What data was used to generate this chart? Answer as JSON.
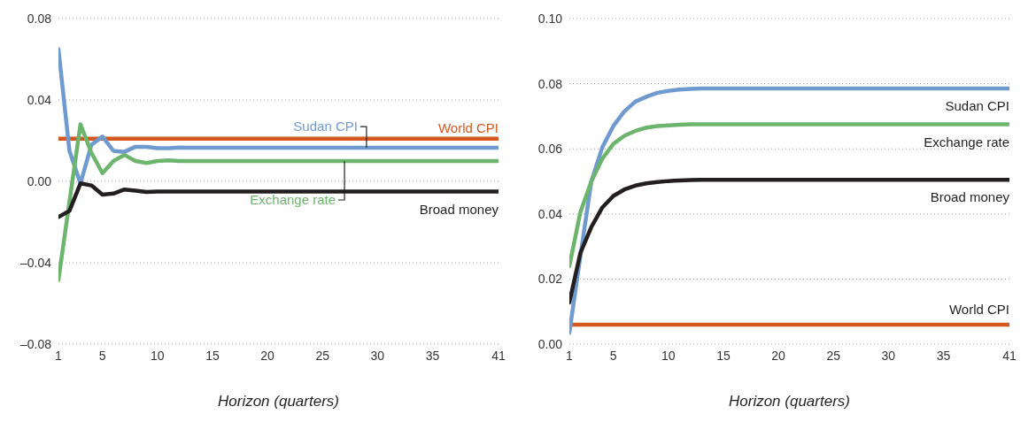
{
  "chart_data": [
    {
      "type": "line",
      "xlabel": "Horizon (quarters)",
      "x": [
        1,
        2,
        3,
        4,
        5,
        6,
        7,
        8,
        9,
        10,
        11,
        12,
        13,
        14,
        15,
        16,
        17,
        18,
        19,
        20,
        21,
        22,
        23,
        24,
        25,
        26,
        27,
        28,
        29,
        30,
        31,
        32,
        33,
        34,
        35,
        36,
        37,
        38,
        39,
        40,
        41
      ],
      "xlim": [
        1,
        41
      ],
      "xticks": [
        1,
        5,
        10,
        15,
        20,
        25,
        30,
        35,
        41
      ],
      "ylim": [
        -0.08,
        0.08
      ],
      "yticks": [
        {
          "value": -0.08,
          "label": "–0.08"
        },
        {
          "value": -0.04,
          "label": "–0.04"
        },
        {
          "value": 0,
          "label": "0.00"
        },
        0.04,
        0.08
      ],
      "grid": "y",
      "series": [
        {
          "name": "World CPI",
          "color": "#d4581e",
          "values": [
            0.021,
            0.021,
            0.021,
            0.021,
            0.021,
            0.021,
            0.021,
            0.021,
            0.021,
            0.021,
            0.021,
            0.021,
            0.021,
            0.021,
            0.021,
            0.021,
            0.021,
            0.021,
            0.021,
            0.021,
            0.021,
            0.021,
            0.021,
            0.021,
            0.021,
            0.021,
            0.021,
            0.021,
            0.021,
            0.021,
            0.021,
            0.021,
            0.021,
            0.021,
            0.021,
            0.021,
            0.021,
            0.021,
            0.021,
            0.021,
            0.021
          ]
        },
        {
          "name": "Sudan CPI",
          "color": "#6f9ad0",
          "values": [
            0.065,
            0.015,
            -0.001,
            0.018,
            0.022,
            0.015,
            0.0145,
            0.017,
            0.017,
            0.0163,
            0.0163,
            0.0166,
            0.0165,
            0.0165,
            0.0165,
            0.0165,
            0.0165,
            0.0165,
            0.0165,
            0.0165,
            0.0165,
            0.0165,
            0.0165,
            0.0165,
            0.0165,
            0.0165,
            0.0165,
            0.0165,
            0.0165,
            0.0165,
            0.0165,
            0.0165,
            0.0165,
            0.0165,
            0.0165,
            0.0165,
            0.0165,
            0.0165,
            0.0165,
            0.0165,
            0.0165
          ]
        },
        {
          "name": "Exchange rate",
          "color": "#6db56d",
          "values": [
            -0.0485,
            -0.01,
            0.028,
            0.014,
            0.004,
            0.01,
            0.013,
            0.01,
            0.009,
            0.01,
            0.0103,
            0.01,
            0.01,
            0.01,
            0.01,
            0.01,
            0.01,
            0.01,
            0.01,
            0.01,
            0.01,
            0.01,
            0.01,
            0.01,
            0.01,
            0.01,
            0.01,
            0.01,
            0.01,
            0.01,
            0.01,
            0.01,
            0.01,
            0.01,
            0.01,
            0.01,
            0.01,
            0.01,
            0.01,
            0.01,
            0.01
          ]
        },
        {
          "name": "Broad money",
          "color": "#231f20",
          "values": [
            -0.0175,
            -0.0145,
            -0.001,
            -0.002,
            -0.0065,
            -0.006,
            -0.004,
            -0.0046,
            -0.0052,
            -0.005,
            -0.005,
            -0.005,
            -0.005,
            -0.005,
            -0.005,
            -0.005,
            -0.005,
            -0.005,
            -0.005,
            -0.005,
            -0.005,
            -0.005,
            -0.005,
            -0.005,
            -0.005,
            -0.005,
            -0.005,
            -0.005,
            -0.005,
            -0.005,
            -0.005,
            -0.005,
            -0.005,
            -0.005,
            -0.005,
            -0.005,
            -0.005,
            -0.005,
            -0.005,
            -0.005,
            -0.005
          ]
        }
      ]
    },
    {
      "type": "line",
      "xlabel": "Horizon (quarters)",
      "x": [
        1,
        2,
        3,
        4,
        5,
        6,
        7,
        8,
        9,
        10,
        11,
        12,
        13,
        14,
        15,
        16,
        17,
        18,
        19,
        20,
        21,
        22,
        23,
        24,
        25,
        26,
        27,
        28,
        29,
        30,
        31,
        32,
        33,
        34,
        35,
        36,
        37,
        38,
        39,
        40,
        41
      ],
      "xlim": [
        1,
        41
      ],
      "xticks": [
        1,
        5,
        10,
        15,
        20,
        25,
        30,
        35,
        41
      ],
      "ylim": [
        0,
        0.1
      ],
      "yticks": [
        {
          "value": 0,
          "label": "0.00"
        },
        0.02,
        0.04,
        0.06,
        0.08,
        {
          "value": 0.1,
          "label": "0.10"
        }
      ],
      "grid": "y",
      "series": [
        {
          "name": "World CPI",
          "color": "#d4581e",
          "values": [
            0.006,
            0.006,
            0.006,
            0.006,
            0.006,
            0.006,
            0.006,
            0.006,
            0.006,
            0.006,
            0.006,
            0.006,
            0.006,
            0.006,
            0.006,
            0.006,
            0.006,
            0.006,
            0.006,
            0.006,
            0.006,
            0.006,
            0.006,
            0.006,
            0.006,
            0.006,
            0.006,
            0.006,
            0.006,
            0.006,
            0.006,
            0.006,
            0.006,
            0.006,
            0.006,
            0.006,
            0.006,
            0.006,
            0.006,
            0.006,
            0.006
          ]
        },
        {
          "name": "Sudan CPI",
          "color": "#6f9ad0",
          "values": [
            0.0035,
            0.027,
            0.05,
            0.0605,
            0.067,
            0.0715,
            0.0745,
            0.076,
            0.0772,
            0.0778,
            0.0782,
            0.0784,
            0.0785,
            0.0785,
            0.0785,
            0.0785,
            0.0785,
            0.0785,
            0.0785,
            0.0785,
            0.0785,
            0.0785,
            0.0785,
            0.0785,
            0.0785,
            0.0785,
            0.0785,
            0.0785,
            0.0785,
            0.0785,
            0.0785,
            0.0785,
            0.0785,
            0.0785,
            0.0785,
            0.0785,
            0.0785,
            0.0785,
            0.0785,
            0.0785,
            0.0785
          ]
        },
        {
          "name": "Exchange rate",
          "color": "#6db56d",
          "values": [
            0.024,
            0.0405,
            0.05,
            0.057,
            0.0615,
            0.064,
            0.0655,
            0.0665,
            0.067,
            0.0672,
            0.0674,
            0.0675,
            0.0675,
            0.0675,
            0.0675,
            0.0675,
            0.0675,
            0.0675,
            0.0675,
            0.0675,
            0.0675,
            0.0675,
            0.0675,
            0.0675,
            0.0675,
            0.0675,
            0.0675,
            0.0675,
            0.0675,
            0.0675,
            0.0675,
            0.0675,
            0.0675,
            0.0675,
            0.0675,
            0.0675,
            0.0675,
            0.0675,
            0.0675,
            0.0675,
            0.0675
          ]
        },
        {
          "name": "Broad money",
          "color": "#231f20",
          "values": [
            0.0128,
            0.028,
            0.036,
            0.042,
            0.0455,
            0.0475,
            0.0487,
            0.0494,
            0.0498,
            0.0501,
            0.0503,
            0.0504,
            0.0505,
            0.0505,
            0.0505,
            0.0505,
            0.0505,
            0.0505,
            0.0505,
            0.0505,
            0.0505,
            0.0505,
            0.0505,
            0.0505,
            0.0505,
            0.0505,
            0.0505,
            0.0505,
            0.0505,
            0.0505,
            0.0505,
            0.0505,
            0.0505,
            0.0505,
            0.0505,
            0.0505,
            0.0505,
            0.0505,
            0.0505,
            0.0505,
            0.0505
          ]
        }
      ]
    }
  ]
}
